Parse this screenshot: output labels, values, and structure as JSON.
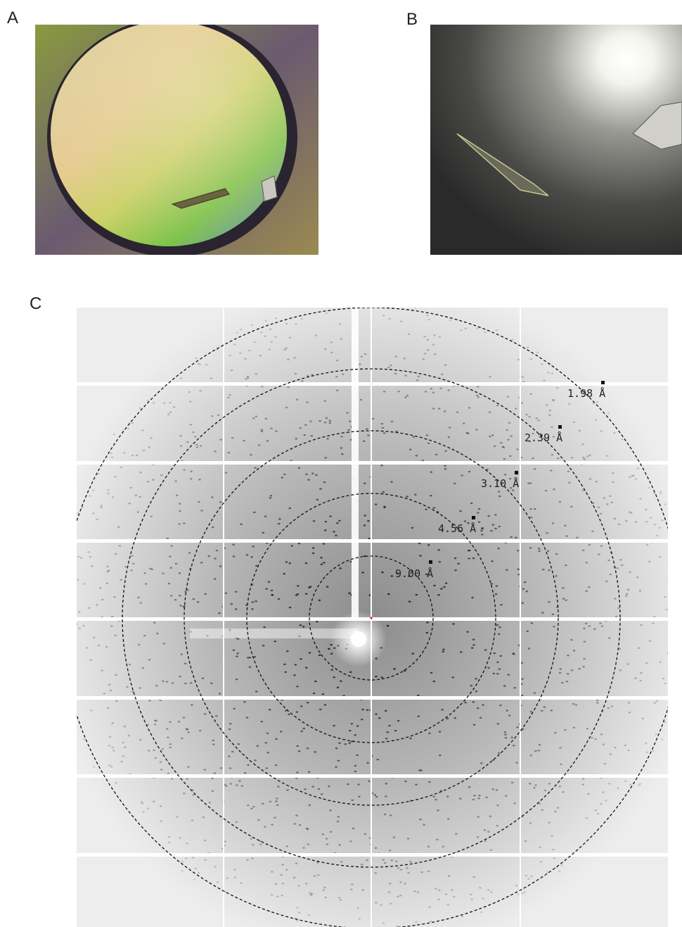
{
  "panels": [
    {
      "label": "A"
    },
    {
      "label": "B"
    },
    {
      "label": "C",
      "resolution_rings": [
        "9.00 Å",
        "4.56 Å",
        "3.10 Å",
        "2.39 Å",
        "1.98 Å"
      ]
    }
  ]
}
